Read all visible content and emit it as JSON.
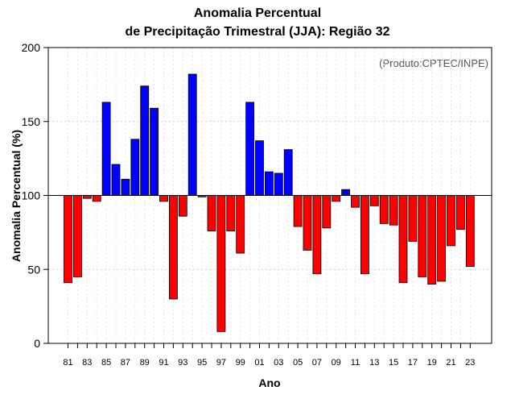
{
  "chart_data": {
    "type": "bar",
    "title_line1": "Anomalia Percentual",
    "title_line2": "de Precipitação Trimestral (JJA): Região 32",
    "xlabel": "Ano",
    "ylabel": "Anomalia Percentual (%)",
    "credit": "(Produto:CPTEC/INPE)",
    "baseline": 100,
    "ylim": [
      0,
      200
    ],
    "yticks": [
      0,
      50,
      100,
      150,
      200
    ],
    "above_color": "#0000ff",
    "below_color": "#ff0000",
    "categories": [
      "81",
      "82",
      "83",
      "84",
      "85",
      "86",
      "87",
      "88",
      "89",
      "90",
      "91",
      "92",
      "93",
      "94",
      "95",
      "96",
      "97",
      "98",
      "99",
      "00",
      "01",
      "02",
      "03",
      "04",
      "05",
      "06",
      "07",
      "08",
      "09",
      "10",
      "11",
      "12",
      "13",
      "14",
      "15",
      "16",
      "17",
      "18",
      "19",
      "20",
      "21",
      "22",
      "23"
    ],
    "xtick_labels": [
      "81",
      "83",
      "85",
      "87",
      "89",
      "91",
      "93",
      "95",
      "97",
      "99",
      "01",
      "03",
      "05",
      "07",
      "09",
      "11",
      "13",
      "15",
      "17",
      "19",
      "21",
      "23"
    ],
    "values": [
      41,
      45,
      98,
      96,
      163,
      121,
      111,
      138,
      174,
      159,
      96,
      30,
      86,
      182,
      99,
      76,
      8,
      76,
      61,
      163,
      137,
      116,
      115,
      131,
      79,
      63,
      47,
      78,
      96,
      104,
      92,
      47,
      93,
      81,
      80,
      41,
      69,
      45,
      40,
      42,
      66,
      77,
      52
    ]
  }
}
